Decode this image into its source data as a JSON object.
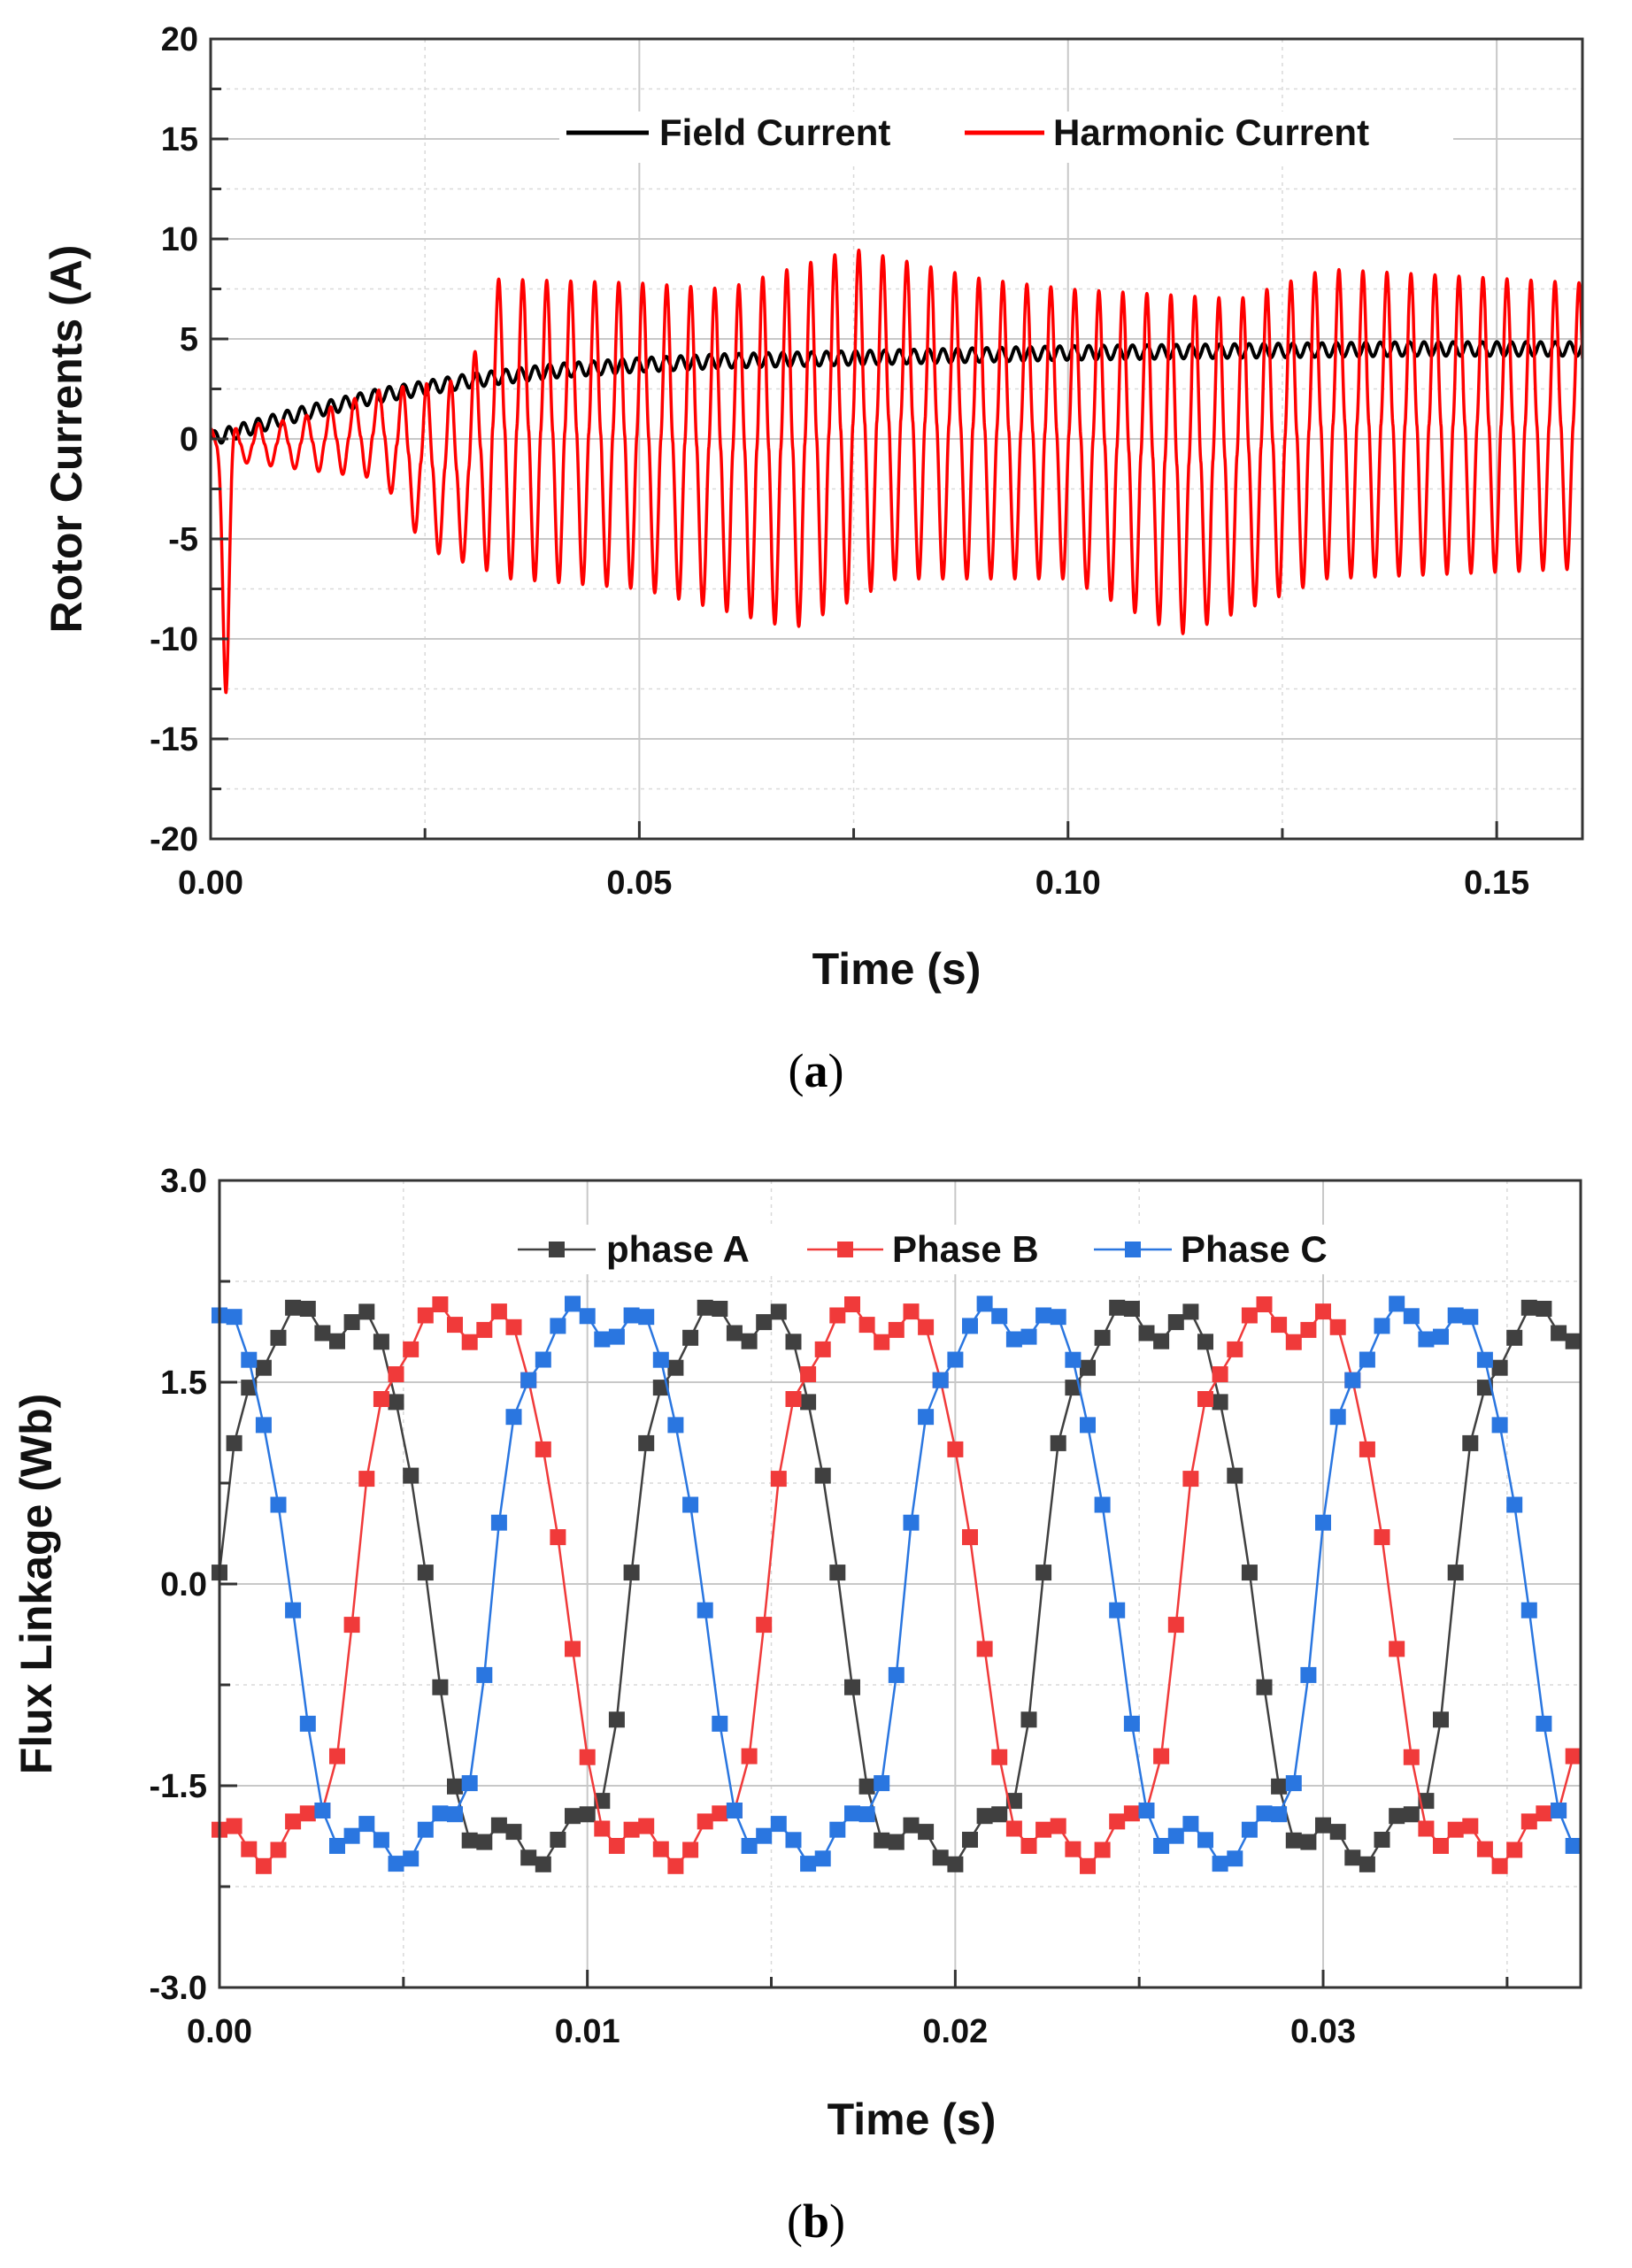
{
  "chart_data": [
    {
      "type": "line",
      "panel": "a",
      "caption": "a",
      "xlabel": "Time (s)",
      "ylabel": "Rotor Currents (A)",
      "xlim": [
        0,
        0.16
      ],
      "ylim": [
        -20,
        20
      ],
      "xticks": [
        0.0,
        0.05,
        0.1,
        0.15
      ],
      "xtick_labels": [
        "0.00",
        "0.05",
        "0.10",
        "0.15"
      ],
      "yticks": [
        20,
        15,
        10,
        5,
        0,
        -5,
        -10,
        -15,
        -20
      ],
      "ytick_labels": [
        "20",
        "15",
        "10",
        "5",
        "0",
        "-5",
        "-10",
        "-15",
        "-20"
      ],
      "grid": true,
      "legend_position": "top-right",
      "series": [
        {
          "name": "Field Current",
          "color": "#000000",
          "description_points": {
            "x": [
              0.0,
              0.01,
              0.02,
              0.03,
              0.04,
              0.05,
              0.06,
              0.07,
              0.08,
              0.1,
              0.12,
              0.14,
              0.16
            ],
            "y": [
              0.0,
              1.2,
              2.2,
              2.9,
              3.4,
              3.7,
              3.9,
              4.0,
              4.1,
              4.3,
              4.4,
              4.5,
              4.5
            ]
          },
          "ripple_amplitude": 0.35,
          "period": 0.0017
        },
        {
          "name": "Harmonic Current",
          "color": "#ff0000",
          "period": 0.0028,
          "start_dip": -12,
          "peak_envelope": {
            "x": [
              0.0,
              0.01,
              0.02,
              0.03,
              0.033,
              0.05,
              0.06,
              0.075,
              0.09,
              0.1,
              0.12,
              0.13,
              0.16
            ],
            "y": [
              0.5,
              1.0,
              2.5,
              3.0,
              8.0,
              7.8,
              7.5,
              9.5,
              8.0,
              7.5,
              7.0,
              8.5,
              7.8
            ]
          },
          "trough_envelope": {
            "x": [
              0.0,
              0.01,
              0.02,
              0.025,
              0.035,
              0.05,
              0.068,
              0.08,
              0.1,
              0.113,
              0.13,
              0.16
            ],
            "y": [
              -1.0,
              -1.5,
              -2.0,
              -5.5,
              -7.0,
              -7.5,
              -9.5,
              -7.0,
              -7.0,
              -9.8,
              -7.0,
              -6.5
            ]
          }
        }
      ]
    },
    {
      "type": "line",
      "panel": "b",
      "caption": "b",
      "xlabel": "Time (s)",
      "ylabel": "Flux Linkage (Wb)",
      "xlim": [
        0,
        0.037
      ],
      "ylim": [
        -3.0,
        3.0
      ],
      "xticks": [
        0.0,
        0.01,
        0.02,
        0.03
      ],
      "xtick_labels": [
        "0.00",
        "0.01",
        "0.02",
        "0.03"
      ],
      "yticks": [
        3.0,
        1.5,
        0.0,
        -1.5,
        -3.0
      ],
      "ytick_labels": [
        "3.0",
        "1.5",
        "0.0",
        "-1.5",
        "-3.0"
      ],
      "grid": true,
      "legend_position": "top-right",
      "period": 0.0112,
      "sample_step": 0.0004,
      "amplitude": 1.95,
      "ripple_amplitude": 0.15,
      "series": [
        {
          "name": "phase A",
          "color": "#404040",
          "phase_deg": 0
        },
        {
          "name": "Phase B",
          "color": "#f03a3a",
          "phase_deg": 120
        },
        {
          "name": "Phase C",
          "color": "#2a76e0",
          "phase_deg": -120
        }
      ]
    }
  ]
}
